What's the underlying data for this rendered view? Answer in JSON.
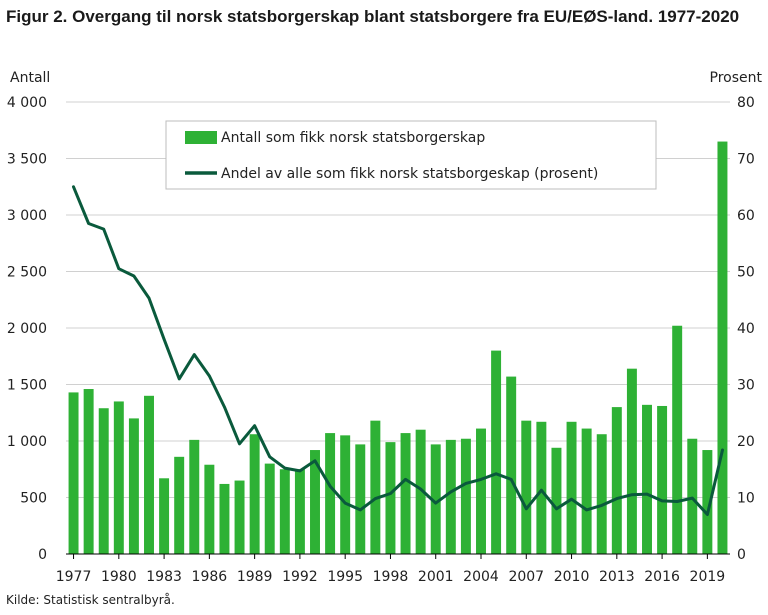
{
  "title": "Figur 2. Overgang til norsk statsborgerskap blant statsborgere fra EU/EØS-land. 1977-2020",
  "source": "Kilde: Statistisk sentralbyrå.",
  "chart_data": {
    "type": "bar+line",
    "title": "Figur 2. Overgang til norsk statsborgerskap blant statsborgere fra EU/EØS-land. 1977-2020",
    "y_left_label": "Antall",
    "y_right_label": "Prosent",
    "y_left_lim": [
      0,
      4000
    ],
    "y_right_lim": [
      0,
      80
    ],
    "y_left_ticks": [
      "0",
      "500",
      "1 000",
      "1 500",
      "2 000",
      "2 500",
      "3 000",
      "3 500",
      "4 000"
    ],
    "y_right_ticks": [
      "0",
      "10",
      "20",
      "30",
      "40",
      "50",
      "60",
      "70",
      "80"
    ],
    "x_tick_labels": [
      "1977",
      "1980",
      "1983",
      "1986",
      "1989",
      "1992",
      "1995",
      "1998",
      "2001",
      "2004",
      "2007",
      "2010",
      "2013",
      "2016",
      "2019"
    ],
    "categories": [
      1977,
      1978,
      1979,
      1980,
      1981,
      1982,
      1983,
      1984,
      1985,
      1986,
      1987,
      1988,
      1989,
      1990,
      1991,
      1992,
      1993,
      1994,
      1995,
      1996,
      1997,
      1998,
      1999,
      2000,
      2001,
      2002,
      2003,
      2004,
      2005,
      2006,
      2007,
      2008,
      2009,
      2010,
      2011,
      2012,
      2013,
      2014,
      2015,
      2016,
      2017,
      2018,
      2019,
      2020
    ],
    "series": [
      {
        "name": "Antall som fikk norsk statsborgerskap",
        "type": "bar",
        "axis": "left",
        "color": "#2eb135",
        "values": [
          1430,
          1460,
          1290,
          1350,
          1200,
          1400,
          670,
          860,
          1010,
          790,
          620,
          650,
          1060,
          800,
          750,
          750,
          920,
          1070,
          1050,
          970,
          1180,
          990,
          1070,
          1100,
          970,
          1010,
          1020,
          1110,
          1800,
          1570,
          1180,
          1170,
          940,
          1170,
          1110,
          1060,
          1300,
          1640,
          1320,
          1310,
          2020,
          1020,
          920,
          3650
        ]
      },
      {
        "name": "Andel av alle som fikk norsk statsborgeskap (prosent)",
        "type": "line",
        "axis": "right",
        "color": "#0a5a3c",
        "values": [
          65,
          58.5,
          57.5,
          50.5,
          49.2,
          45.3,
          38,
          31,
          35.3,
          31.5,
          26,
          19.5,
          22.7,
          17.2,
          15.2,
          14.7,
          16.5,
          12,
          9,
          7.8,
          9.8,
          10.7,
          13.2,
          11.5,
          9,
          11,
          12.5,
          13.2,
          14.2,
          13.2,
          8,
          11.3,
          8,
          9.7,
          7.8,
          8.6,
          9.8,
          10.5,
          10.6,
          9.4,
          9.3,
          9.9,
          7,
          18.4
        ]
      }
    ],
    "legend_position": "top-center"
  }
}
